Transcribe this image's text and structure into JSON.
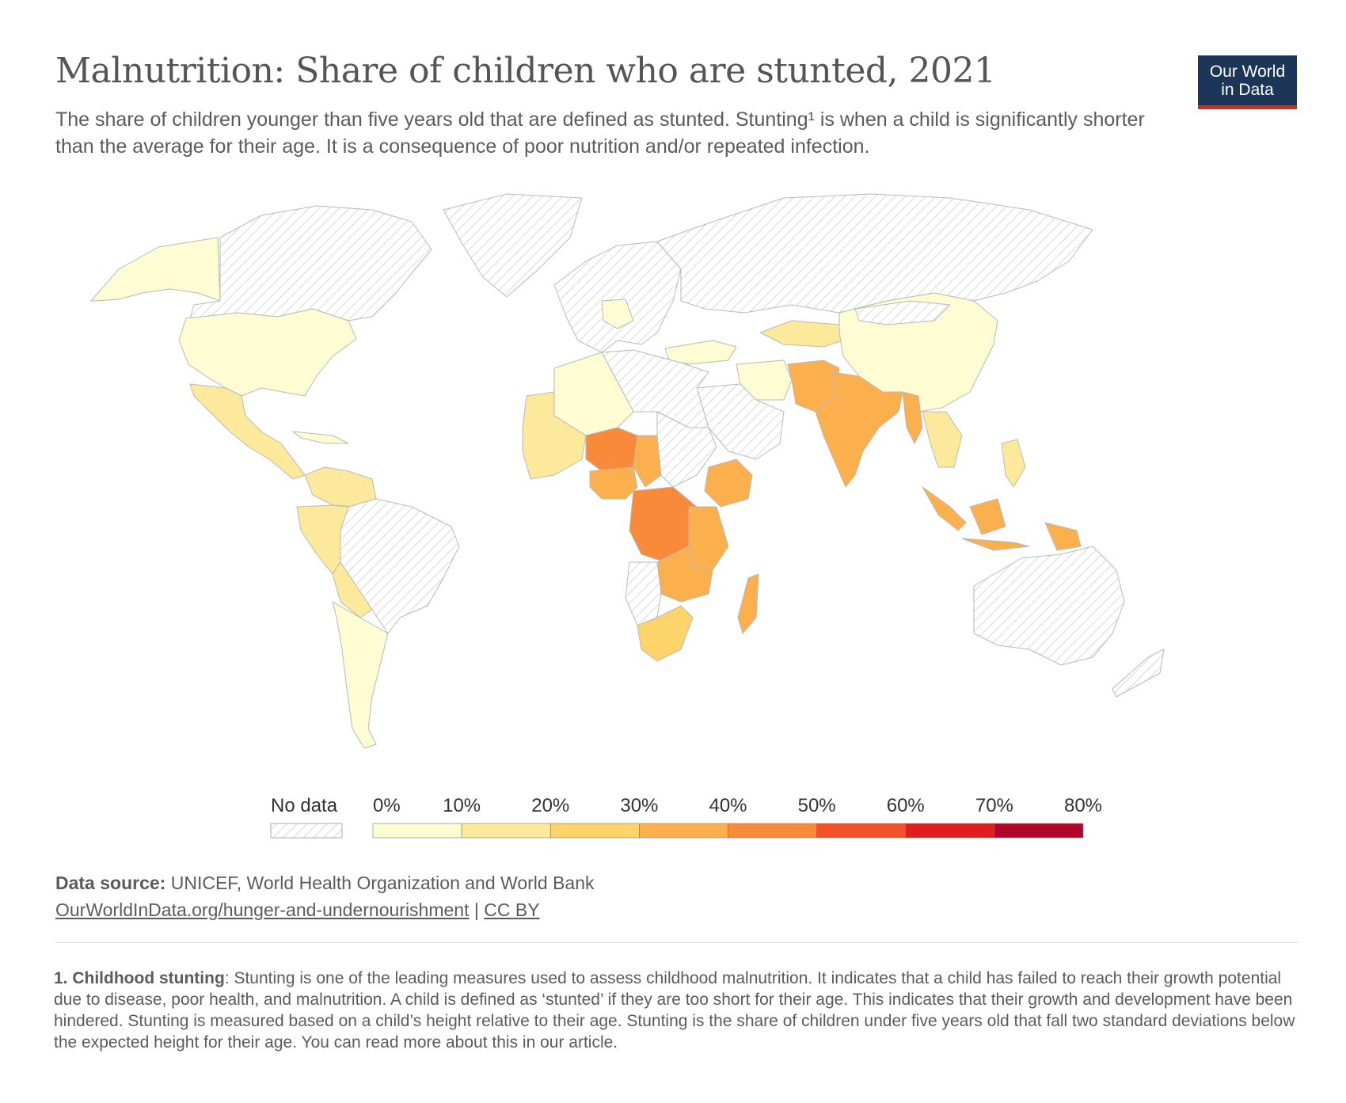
{
  "header": {
    "title": "Malnutrition: Share of children who are stunted, 2021",
    "subtitle": "The share of children younger than five years old that are defined as stunted. Stunting¹ is when a child is significantly shorter than the average for their age. It is a consequence of poor nutrition and/or repeated infection."
  },
  "logo": {
    "line1": "Our World",
    "line2": "in Data",
    "bg": "#1d3557",
    "accent": "#d42b21"
  },
  "legend": {
    "no_data_label": "No data",
    "ticks": [
      "0%",
      "10%",
      "20%",
      "30%",
      "40%",
      "50%",
      "60%",
      "70%",
      "80%"
    ],
    "colors": [
      "#fefcd3",
      "#fde99b",
      "#fdd46a",
      "#fbb04d",
      "#f98a3a",
      "#f2522b",
      "#de1f1e",
      "#b0062a"
    ]
  },
  "source": {
    "label": "Data source:",
    "text": "UNICEF, World Health Organization and World Bank",
    "link": "OurWorldInData.org/hunger-and-undernourishment",
    "separator": "|",
    "license": "CC BY"
  },
  "footnote": {
    "label": "1. Childhood stunting",
    "text": ": Stunting is one of the leading measures used to assess childhood malnutrition. It indicates that a child has failed to reach their growth potential due to disease, poor health, and malnutrition. A child is defined as ‘stunted’ if they are too short for their age. This indicates that their growth and development have been hindered. Stunting is measured based on a child’s height relative to their age. Stunting is the share of children under five years old that fall two standard deviations below the expected height for their age. You can read more about this in our article."
  },
  "map_colors": {
    "nodata_stroke": "#c8c8c8",
    "border": "#b9b9b9"
  }
}
